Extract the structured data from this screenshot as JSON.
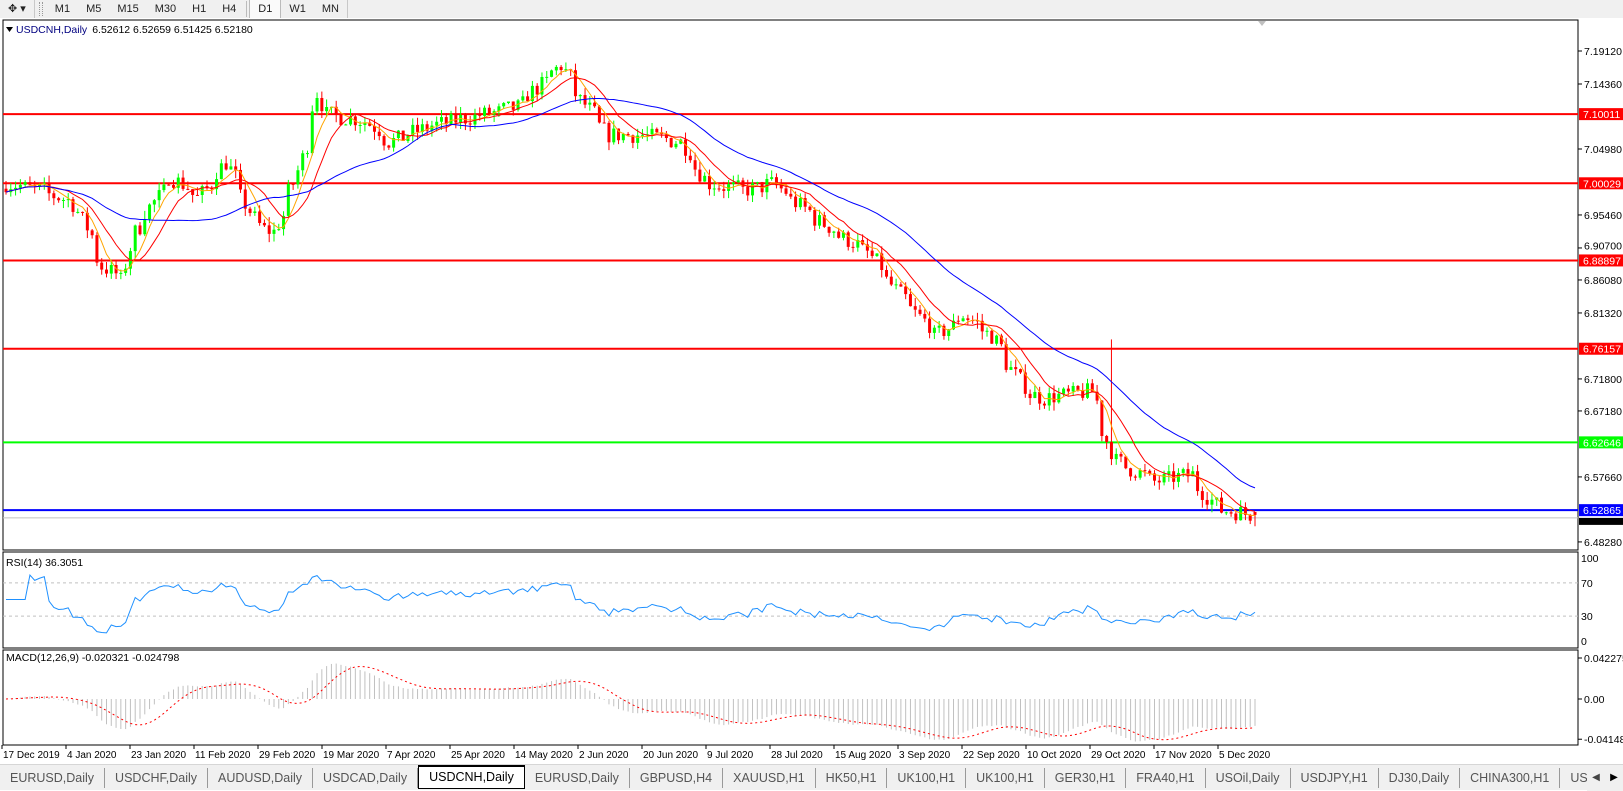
{
  "toolbar": {
    "timeframes": [
      "M1",
      "M5",
      "M15",
      "M30",
      "H1",
      "H4",
      "D1",
      "W1",
      "MN"
    ],
    "active_timeframe": "D1"
  },
  "chart_header": {
    "symbol": "USDCNH,Daily",
    "ohlc": "6.52612 6.52659 6.51425 6.52180"
  },
  "rsi": {
    "label": "RSI(14) 36.3051",
    "ticks": [
      "100",
      "70",
      "30",
      "0"
    ],
    "levels": [
      70,
      30
    ],
    "color": "#1e90ff"
  },
  "macd": {
    "label": "MACD(12,26,9) -0.020321 -0.024798",
    "ticks": [
      "0.042275",
      "0.00",
      "-0.04148"
    ],
    "histogram_color": "#c0c0c0",
    "signal_color": "#ff0000"
  },
  "chart_data": {
    "type": "candlestick",
    "symbol": "USDCNH",
    "timeframe": "Daily",
    "last_ohlc": {
      "open": 6.52612,
      "high": 6.52659,
      "low": 6.51425,
      "close": 6.5218
    },
    "ylim": [
      6.4828,
      7.215
    ],
    "price_ticks": [
      "7.19120",
      "7.14360",
      "7.04980",
      "6.95460",
      "6.90700",
      "6.86080",
      "6.81320",
      "6.71800",
      "6.67180",
      "6.57660",
      "6.48280"
    ],
    "date_ticks": [
      "17 Dec 2019",
      "4 Jan 2020",
      "23 Jan 2020",
      "11 Feb 2020",
      "29 Feb 2020",
      "19 Mar 2020",
      "7 Apr 2020",
      "25 Apr 2020",
      "14 May 2020",
      "2 Jun 2020",
      "20 Jun 2020",
      "9 Jul 2020",
      "28 Jul 2020",
      "15 Aug 2020",
      "3 Sep 2020",
      "22 Sep 2020",
      "10 Oct 2020",
      "29 Oct 2020",
      "17 Nov 2020",
      "5 Dec 2020"
    ],
    "horizontal_lines": [
      {
        "price": "7.10011",
        "color": "#ff0000"
      },
      {
        "price": "7.00029",
        "color": "#ff0000"
      },
      {
        "price": "6.88897",
        "color": "#ff0000"
      },
      {
        "price": "6.76157",
        "color": "#ff0000"
      },
      {
        "price": "6.62646",
        "color": "#00ff00"
      },
      {
        "price": "6.52865",
        "color": "#0000ff"
      }
    ],
    "bid_line": {
      "price": "6.52180",
      "color": "#c0c0c0"
    },
    "moving_average_colors": [
      "#ff0000",
      "#0000ff",
      "#ffa500"
    ],
    "candle_colors": {
      "up": "#00ff00",
      "down": "#ff0000"
    },
    "approx_close_path": [
      [
        "2019-12-17",
        7.0
      ],
      [
        "2019-12-27",
        6.99
      ],
      [
        "2020-01-06",
        6.97
      ],
      [
        "2020-01-14",
        6.88
      ],
      [
        "2020-01-20",
        6.86
      ],
      [
        "2020-01-23",
        6.93
      ],
      [
        "2020-02-03",
        7.01
      ],
      [
        "2020-02-11",
        6.98
      ],
      [
        "2020-02-19",
        7.03
      ],
      [
        "2020-02-28",
        6.94
      ],
      [
        "2020-03-04",
        6.93
      ],
      [
        "2020-03-10",
        7.0
      ],
      [
        "2020-03-17",
        7.13
      ],
      [
        "2020-03-19",
        7.1
      ],
      [
        "2020-03-31",
        7.09
      ],
      [
        "2020-04-07",
        7.06
      ],
      [
        "2020-04-17",
        7.08
      ],
      [
        "2020-04-25",
        7.09
      ],
      [
        "2020-05-05",
        7.1
      ],
      [
        "2020-05-14",
        7.11
      ],
      [
        "2020-05-27",
        7.17
      ],
      [
        "2020-06-02",
        7.12
      ],
      [
        "2020-06-10",
        7.07
      ],
      [
        "2020-06-20",
        7.07
      ],
      [
        "2020-07-01",
        7.06
      ],
      [
        "2020-07-09",
        7.0
      ],
      [
        "2020-07-20",
        6.99
      ],
      [
        "2020-07-28",
        7.0
      ],
      [
        "2020-08-07",
        6.96
      ],
      [
        "2020-08-15",
        6.93
      ],
      [
        "2020-08-25",
        6.9
      ],
      [
        "2020-09-03",
        6.84
      ],
      [
        "2020-09-14",
        6.78
      ],
      [
        "2020-09-22",
        6.81
      ],
      [
        "2020-09-30",
        6.78
      ],
      [
        "2020-10-10",
        6.7
      ],
      [
        "2020-10-15",
        6.69
      ],
      [
        "2020-10-29",
        6.7
      ],
      [
        "2020-11-05",
        6.6
      ],
      [
        "2020-11-17",
        6.57
      ],
      [
        "2020-11-27",
        6.58
      ],
      [
        "2020-12-05",
        6.53
      ],
      [
        "2020-12-16",
        6.5218
      ]
    ]
  },
  "tabs": {
    "items": [
      "EURUSD,Daily",
      "USDCHF,Daily",
      "AUDUSD,Daily",
      "USDCAD,Daily",
      "USDCNH,Daily",
      "EURUSD,Daily",
      "GBPUSD,H4",
      "XAUUSD,H1",
      "HK50,H1",
      "UK100,H1",
      "UK100,H1",
      "GER30,H1",
      "FRA40,H1",
      "USOil,Daily",
      "USDJPY,H1",
      "DJ30,Daily",
      "CHINA300,H1",
      "USOil,"
    ],
    "active": "USDCNH,Daily"
  }
}
